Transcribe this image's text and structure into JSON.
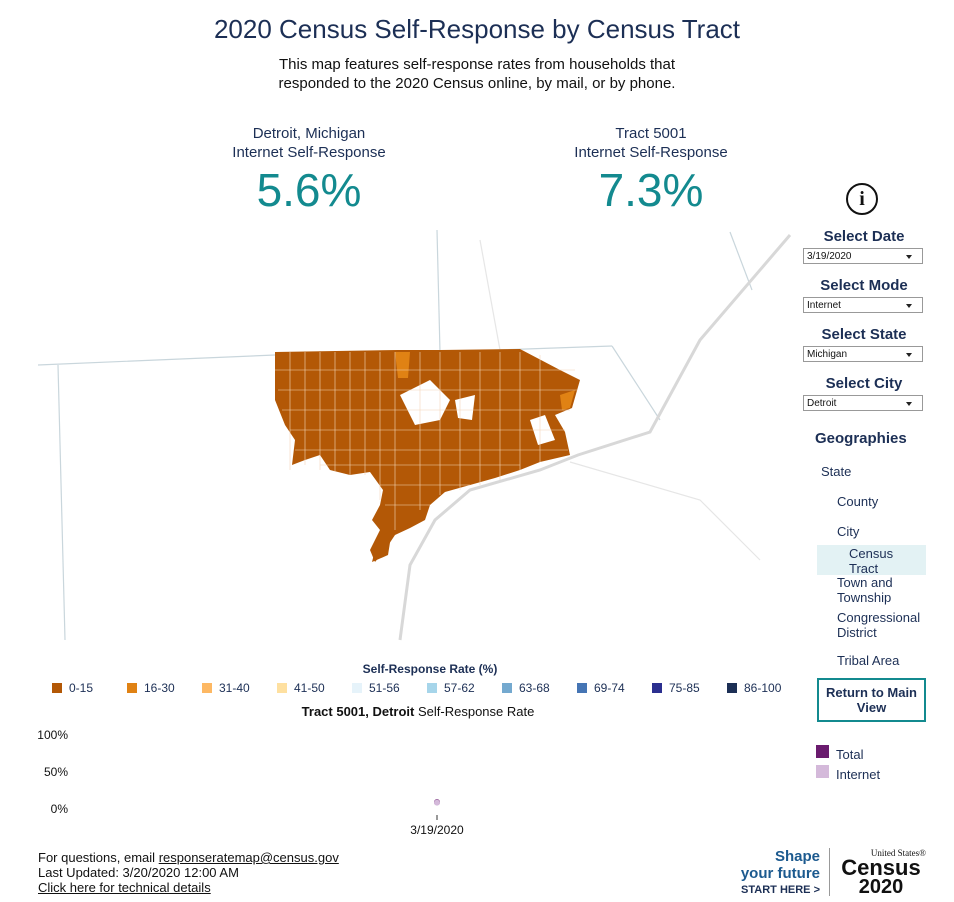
{
  "header": {
    "title": "2020 Census Self-Response by Census Tract",
    "subtitle_lines": [
      "This map features self-response rates from households that",
      "responded to the 2020 Census online, by mail, or by phone."
    ]
  },
  "stats": [
    {
      "place": "Detroit, Michigan",
      "measure": "Internet Self-Response",
      "value": "5.6%"
    },
    {
      "place": "Tract 5001",
      "measure": "Internet Self-Response",
      "value": "7.3%"
    }
  ],
  "controls": [
    {
      "label": "Select Date",
      "value": "3/19/2020"
    },
    {
      "label": "Select Mode",
      "value": "Internet"
    },
    {
      "label": "Select State",
      "value": "Michigan"
    },
    {
      "label": "Select City",
      "value": "Detroit"
    }
  ],
  "geographies": {
    "title": "Geographies",
    "items": [
      "State",
      "County",
      "City",
      "Census Tract",
      "Town and Township",
      "Congressional District",
      "Tribal Area"
    ],
    "selected": 3
  },
  "return_button": "Return to Main View",
  "map_legend": {
    "title": "Self-Response Rate (%)",
    "items": [
      {
        "label": "0-15",
        "color": "#b35806"
      },
      {
        "label": "16-30",
        "color": "#e08214"
      },
      {
        "label": "31-40",
        "color": "#fdb863"
      },
      {
        "label": "41-50",
        "color": "#fee0a0"
      },
      {
        "label": "51-56",
        "color": "#e6f3fa"
      },
      {
        "label": "57-62",
        "color": "#a6d5ea"
      },
      {
        "label": "63-68",
        "color": "#74a9cf"
      },
      {
        "label": "69-74",
        "color": "#4575b4"
      },
      {
        "label": "75-85",
        "color": "#2b2f8f"
      },
      {
        "label": "86-100",
        "color": "#1c2f55"
      }
    ]
  },
  "chart_data": {
    "type": "line",
    "title_bold": "Tract 5001, Detroit",
    "title": "Self-Response Rate",
    "categories": [
      "3/19/2020"
    ],
    "series": [
      {
        "name": "Total",
        "color": "#6a1b6e",
        "values": [
          8
        ]
      },
      {
        "name": "Internet",
        "color": "#d4b9da",
        "values": [
          7.3
        ]
      }
    ],
    "ylim": [
      0,
      100
    ],
    "yticks": [
      {
        "value": 0,
        "label": "0%"
      },
      {
        "value": 50,
        "label": "50%"
      },
      {
        "value": 100,
        "label": "100%"
      }
    ],
    "grid": false
  },
  "footer": {
    "contact_prefix": "For questions, email",
    "email": "responseratemap@census.gov",
    "updated": "Last Updated: 3/20/2020 12:00 AM",
    "details_link": "Click here for technical details"
  },
  "logo": {
    "tagline_lines": [
      "Shape",
      "your future"
    ],
    "cta": "START HERE >",
    "brand_small": "United States®",
    "brand": "Census",
    "year": "2020"
  }
}
